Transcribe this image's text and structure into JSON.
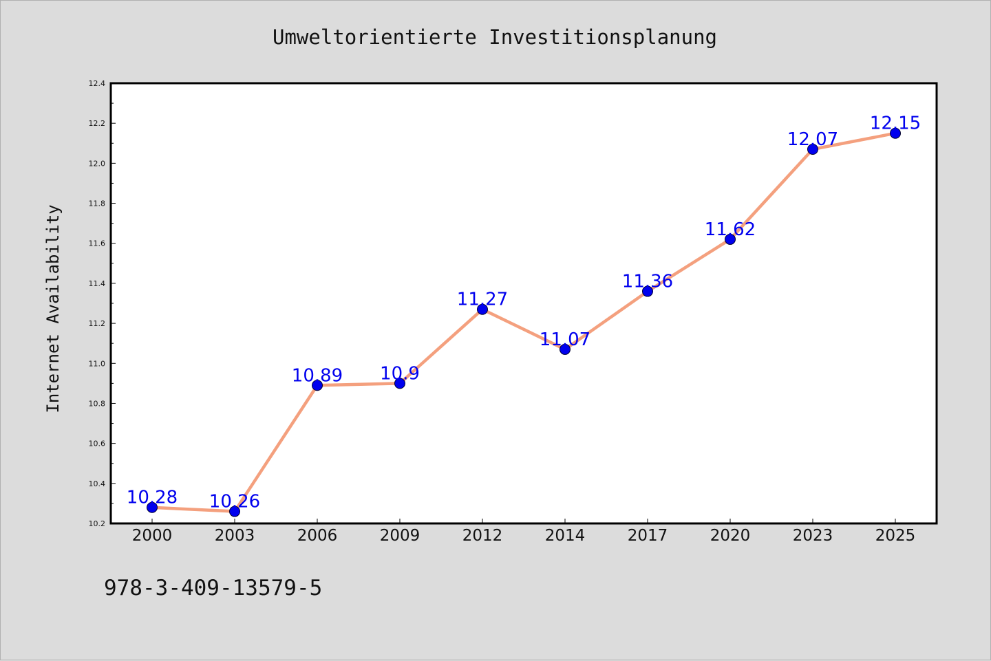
{
  "chart_data": {
    "type": "line",
    "title": "Umweltorientierte Investitionsplanung",
    "xlabel": "",
    "ylabel": "Internet Availability",
    "categories": [
      "2000",
      "2003",
      "2006",
      "2009",
      "2012",
      "2014",
      "2017",
      "2020",
      "2023",
      "2025"
    ],
    "series": [
      {
        "values": [
          10.28,
          10.26,
          10.89,
          10.9,
          11.27,
          11.07,
          11.36,
          11.62,
          12.07,
          12.15
        ],
        "labels": [
          "10.28",
          "10.26",
          "10.89",
          "10.9",
          "11.27",
          "11.07",
          "11.36",
          "11.62",
          "12.07",
          "12.15"
        ]
      }
    ],
    "ylim": [
      10.2,
      12.4
    ],
    "yticks": [
      "10.2",
      "10.4",
      "10.6",
      "10.8",
      "11.0",
      "11.2",
      "11.4",
      "11.6",
      "11.8",
      "12.0",
      "12.2",
      "12.4"
    ],
    "grid": false,
    "line_color": "#f4a07e",
    "marker_color": "#0000ee",
    "label_color": "#0000ee"
  },
  "caption": "978-3-409-13579-5"
}
